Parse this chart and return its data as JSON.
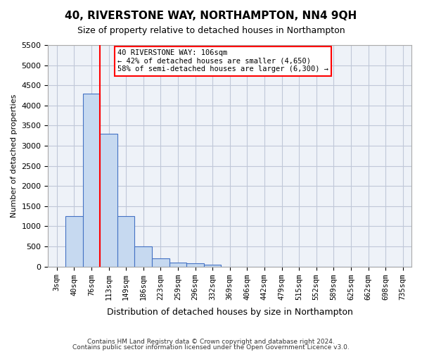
{
  "title": "40, RIVERSTONE WAY, NORTHAMPTON, NN4 9QH",
  "subtitle": "Size of property relative to detached houses in Northampton",
  "xlabel": "Distribution of detached houses by size in Northampton",
  "ylabel": "Number of detached properties",
  "annotation_title": "40 RIVERSTONE WAY: 106sqm",
  "annotation_line2": "← 42% of detached houses are smaller (4,650)",
  "annotation_line3": "58% of semi-detached houses are larger (6,300) →",
  "footer1": "Contains HM Land Registry data © Crown copyright and database right 2024.",
  "footer2": "Contains public sector information licensed under the Open Government Licence v3.0.",
  "bar_labels": [
    "3sqm",
    "40sqm",
    "76sqm",
    "113sqm",
    "149sqm",
    "186sqm",
    "223sqm",
    "259sqm",
    "296sqm",
    "332sqm",
    "369sqm",
    "406sqm",
    "442sqm",
    "479sqm",
    "515sqm",
    "552sqm",
    "589sqm",
    "625sqm",
    "662sqm",
    "698sqm",
    "735sqm"
  ],
  "bar_values": [
    0,
    1250,
    4300,
    3300,
    1250,
    500,
    200,
    100,
    75,
    50,
    0,
    0,
    0,
    0,
    0,
    0,
    0,
    0,
    0,
    0,
    0
  ],
  "bar_color": "#c6d9f0",
  "bar_edge_color": "#4472c4",
  "grid_color": "#c0c8d8",
  "background_color": "#eef2f8",
  "red_line_x": 2,
  "property_size_sqm": 106,
  "ylim": [
    0,
    5500
  ],
  "yticks": [
    0,
    500,
    1000,
    1500,
    2000,
    2500,
    3000,
    3500,
    4000,
    4500,
    5000,
    5500
  ]
}
